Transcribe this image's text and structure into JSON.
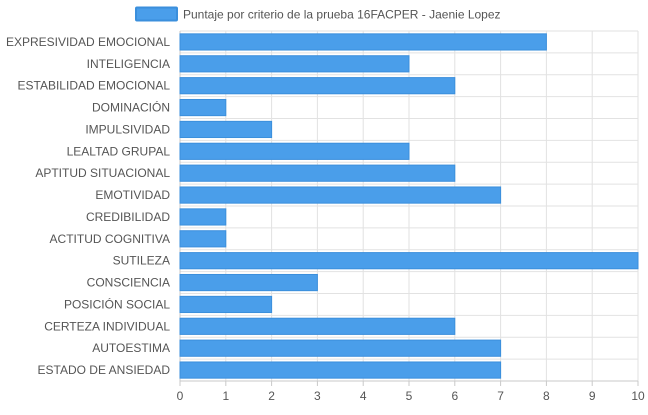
{
  "chart_data": {
    "type": "bar",
    "orientation": "horizontal",
    "legend_position": "top",
    "grid": true,
    "xlim": [
      0,
      10
    ],
    "x_ticks": [
      "0",
      "1",
      "2",
      "3",
      "4",
      "5",
      "6",
      "7",
      "8",
      "9",
      "10"
    ],
    "colors": {
      "bar_fill": "#4a9eea",
      "bar_stroke": "#3b8fdc",
      "grid": "#e2e2e2",
      "axis": "#c9c9c9",
      "text": "#555555"
    },
    "series": [
      {
        "name": "Puntaje por criterio de la prueba 16FACPER - Jaenie Lopez",
        "values": [
          8,
          5,
          6,
          1,
          2,
          5,
          6,
          7,
          1,
          1,
          10,
          3,
          2,
          6,
          7,
          7
        ]
      }
    ],
    "categories": [
      "EXPRESIVIDAD EMOCIONAL",
      "INTELIGENCIA",
      "ESTABILIDAD EMOCIONAL",
      "DOMINACIÓN",
      "IMPULSIVIDAD",
      "LEALTAD GRUPAL",
      "APTITUD SITUACIONAL",
      "EMOTIVIDAD",
      "CREDIBILIDAD",
      "ACTITUD COGNITIVA",
      "SUTILEZA",
      "CONSCIENCIA",
      "POSICIÓN SOCIAL",
      "CERTEZA INDIVIDUAL",
      "AUTOESTIMA",
      "ESTADO DE ANSIEDAD"
    ]
  }
}
